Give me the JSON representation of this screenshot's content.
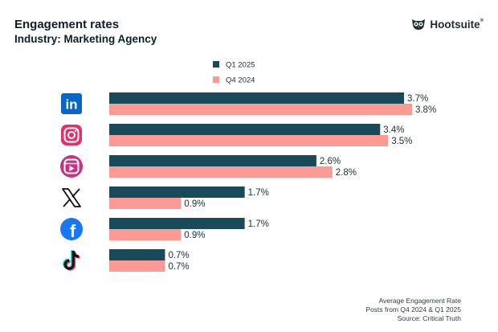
{
  "header": {
    "title": "Engagement rates",
    "subtitle": "Industry: Marketing Agency",
    "brand": "Hootsuite",
    "brand_mark": "®"
  },
  "footnote": {
    "line1": "Average Engagement Rate",
    "line2": "Posts from Q4 2024 & Q1 2025",
    "line3": "Source: Critical Truth"
  },
  "colors": {
    "q1": "#184a59",
    "q4": "#fb9b94",
    "text": "#1c2f36"
  },
  "chart_data": {
    "type": "bar",
    "orientation": "horizontal",
    "title": "Engagement rates",
    "subtitle": "Industry: Marketing Agency",
    "categories": [
      "LinkedIn",
      "Instagram",
      "Instagram Reels",
      "X",
      "Facebook",
      "TikTok"
    ],
    "category_icons": [
      "linkedin-icon",
      "instagram-icon",
      "instagram-reels-icon",
      "x-icon",
      "facebook-icon",
      "tiktok-icon"
    ],
    "series": [
      {
        "name": "Q1 2025",
        "values": [
          3.7,
          3.4,
          2.6,
          1.7,
          1.7,
          0.7
        ],
        "labels": [
          "3.7%",
          "3.4%",
          "2.6%",
          "1.7%",
          "1.7%",
          "0.7%"
        ]
      },
      {
        "name": "Q4 2024",
        "values": [
          3.8,
          3.5,
          2.8,
          0.9,
          0.9,
          0.7
        ],
        "labels": [
          "3.8%",
          "3.5%",
          "2.8%",
          "0.9%",
          "0.9%",
          "0.7%"
        ]
      }
    ],
    "legend_position": "top-center",
    "xlim": [
      0,
      4
    ]
  }
}
